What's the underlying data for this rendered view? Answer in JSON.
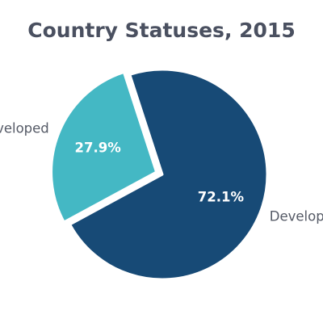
{
  "chart_data": {
    "type": "pie",
    "title": "Country Statuses, 2015",
    "slices": [
      {
        "label": "Developing",
        "value": 72.1,
        "pct_label": "72.1%",
        "color": "#174a76",
        "exploded": false
      },
      {
        "label": "Developed",
        "value": 27.9,
        "pct_label": "27.9%",
        "color": "#44b8c4",
        "exploded": true
      }
    ],
    "start_angle_deg": -18,
    "direction": "clockwise",
    "legend": "none",
    "colors": {
      "title": "#4a5060",
      "labels": "#555a66",
      "pct_text": "#ffffff",
      "background": "#ffffff",
      "slice_edge": "#ffffff"
    }
  }
}
